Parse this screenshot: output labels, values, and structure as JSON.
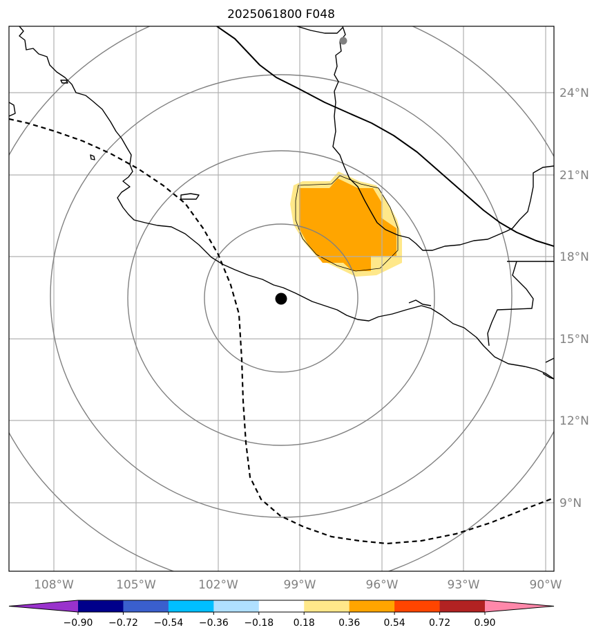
{
  "title": "2025061800 F048",
  "map": {
    "lon_range": [
      -109.5,
      -89.6
    ],
    "lat_range": [
      6.8,
      26.8
    ],
    "lat_ticks": [
      "24°N",
      "21°N",
      "18°N",
      "15°N",
      "12°N",
      "9°N"
    ],
    "lon_ticks": [
      "108°W",
      "105°W",
      "102°W",
      "99°W",
      "96°W",
      "93°W",
      "90°W"
    ],
    "gridlines": true,
    "range_rings": {
      "center_lon": -99.8,
      "center_lat": 16.6,
      "count": 4
    },
    "center_marker": {
      "lon": -99.8,
      "lat": 16.5,
      "color": "#000000"
    },
    "secondary_marker": {
      "lon": -97.4,
      "lat": 26.0,
      "color": "#808080"
    },
    "contour_region": {
      "level_color_1": "#ffe88a",
      "level_color_2": "#ffa500"
    }
  },
  "colorbar": {
    "colors": [
      "#9932cc",
      "#00008b",
      "#3a5fcd",
      "#00bfff",
      "#b0e0ff",
      "#ffffff",
      "#ffe88a",
      "#ffa500",
      "#ff4500",
      "#b22222",
      "#ff88aa"
    ],
    "labels": [
      "−0.90",
      "−0.72",
      "−0.54",
      "−0.36",
      "−0.18",
      "0.18",
      "0.36",
      "0.54",
      "0.72",
      "0.90"
    ]
  }
}
